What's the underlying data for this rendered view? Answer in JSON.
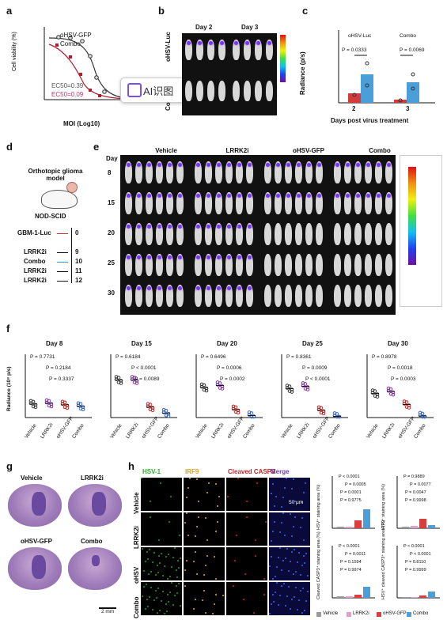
{
  "panel_a": {
    "label": "a",
    "ylabel": "Cell viability (%)",
    "xlabel": "MOI (Log10)",
    "legend": [
      {
        "name": "oHSV-GFP",
        "color": "#333333"
      },
      {
        "name": "Combo",
        "color": "#b01c2e"
      }
    ],
    "ec50_gfp": "EC50=0.39",
    "ec50_combo": "EC50=0.09",
    "yticks": [
      "0",
      "20",
      "40",
      "60",
      "80",
      "100",
      "120"
    ],
    "xticks": [
      "-3",
      "-2",
      "-1",
      "0",
      "1",
      "2",
      "3"
    ],
    "overlay_label": "AI识图"
  },
  "panel_b": {
    "label": "b",
    "days": [
      "Day 2",
      "Day 3"
    ],
    "rows": [
      "oHSV-Luc",
      "Co"
    ]
  },
  "panel_c": {
    "label": "c",
    "ylabel": "Radiance (p/s)",
    "xlabel": "Days post virus treatment",
    "legend": [
      {
        "name": "oHSV-Luc",
        "color": "#d33a3a"
      },
      {
        "name": "Combo",
        "color": "#4a9fd8"
      }
    ],
    "yticks": [
      "0",
      "5×10⁷",
      "1×10⁸",
      "1.5×10⁸"
    ],
    "groups": [
      "2",
      "3"
    ],
    "pvals": [
      "P = 0.0333",
      "P = 0.0069"
    ]
  },
  "panel_d": {
    "label": "d",
    "model": "Orthotopic glioma model",
    "mouse": "NOD-SCID",
    "timeline": [
      {
        "name": "GBM-1-Luc",
        "day": "0",
        "arrow": "#c0392b"
      },
      {
        "name": "LRRK2i",
        "day": "9",
        "arrow": "#111111"
      },
      {
        "name": "Combo",
        "day": "10",
        "arrow": "#3a8fd0"
      },
      {
        "name": "LRRK2i",
        "day": "11",
        "arrow": "#111111"
      },
      {
        "name": "LRRK2i",
        "day": "12",
        "arrow": "#111111"
      }
    ]
  },
  "panel_e": {
    "label": "e",
    "day_label": "Day",
    "groups": [
      "Vehicle",
      "LRRK2i",
      "oHSV-GFP",
      "Combo"
    ],
    "days": [
      "8",
      "15",
      "20",
      "25",
      "30"
    ]
  },
  "panel_f": {
    "label": "f",
    "ylabel": "Radiance (10⁸ p/s)",
    "cats": [
      "Vehicle",
      "LRRK2i",
      "oHSV-GFP",
      "Combo"
    ],
    "plots": [
      {
        "title": "Day 8",
        "p": [
          "P = 0.7731",
          "P = 0.2184",
          "P = 0.3337"
        ],
        "yticks": [
          "0",
          "2",
          "4",
          "6",
          "8"
        ]
      },
      {
        "title": "Day 15",
        "p": [
          "P = 0.6184",
          "P < 0.0001",
          "P = 0.0089"
        ],
        "yticks": [
          "0",
          "2",
          "4",
          "6",
          "8"
        ]
      },
      {
        "title": "Day 20",
        "p": [
          "P = 0.6496",
          "P = 0.0006",
          "P = 0.0002"
        ],
        "yticks": [
          "0",
          "10",
          "20",
          "30"
        ]
      },
      {
        "title": "Day 25",
        "p": [
          "P = 0.8361",
          "P = 0.0009",
          "P < 0.0001"
        ],
        "yticks": [
          "0",
          "20",
          "40",
          "60",
          "80",
          "100"
        ]
      },
      {
        "title": "Day 30",
        "p": [
          "P = 0.8978",
          "P = 0.0018",
          "P = 0.0003"
        ],
        "yticks": [
          "0",
          "100",
          "200",
          "300"
        ]
      }
    ]
  },
  "panel_g": {
    "label": "g",
    "groups": [
      "Vehicle",
      "LRRK2i",
      "oHSV-GFP",
      "Combo"
    ],
    "scale": "2 mm"
  },
  "panel_h": {
    "label": "h",
    "channels": [
      {
        "name": "HSV-1",
        "color": "#2fae2f"
      },
      {
        "name": "IRF9",
        "color": "#d9a020"
      },
      {
        "name": "Cleaved CASP3",
        "color": "#c0282a"
      },
      {
        "name": "Merge",
        "color": "#6a3db0"
      }
    ],
    "rows": [
      "Vehicle",
      "LRRK2i",
      "oHSV",
      "Combo"
    ],
    "scale": "50 μm",
    "legend": [
      {
        "name": "Vehicle",
        "color": "#9a9a9a"
      },
      {
        "name": "LRRK2i",
        "color": "#e0a0c8"
      },
      {
        "name": "oHSV-GFP",
        "color": "#d84040"
      },
      {
        "name": "Combo",
        "color": "#4a9fd8"
      }
    ],
    "charts": [
      {
        "ylabel": "HSV⁺ staining area (%)",
        "p": [
          "P < 0.0001",
          "P = 0.0005",
          "P = 0.0001",
          "P = 0.9775"
        ]
      },
      {
        "ylabel": "IRF9⁺ staining area (%)",
        "p": [
          "P = 0.9889",
          "P = 0.0077",
          "P = 0.0047",
          "P = 0.9998"
        ]
      },
      {
        "ylabel": "Cleaved CASP3⁺ staining area (%)",
        "p": [
          "P < 0.0001",
          "P = 0.0011",
          "P = 0.1594",
          "P = 0.9974"
        ]
      },
      {
        "ylabel": "HSV⁺ cleaved CASP3⁺ staining area (%)",
        "p": [
          "P < 0.0001",
          "P < 0.0001",
          "P = 0.8110",
          "P = 0.9999"
        ]
      }
    ]
  }
}
